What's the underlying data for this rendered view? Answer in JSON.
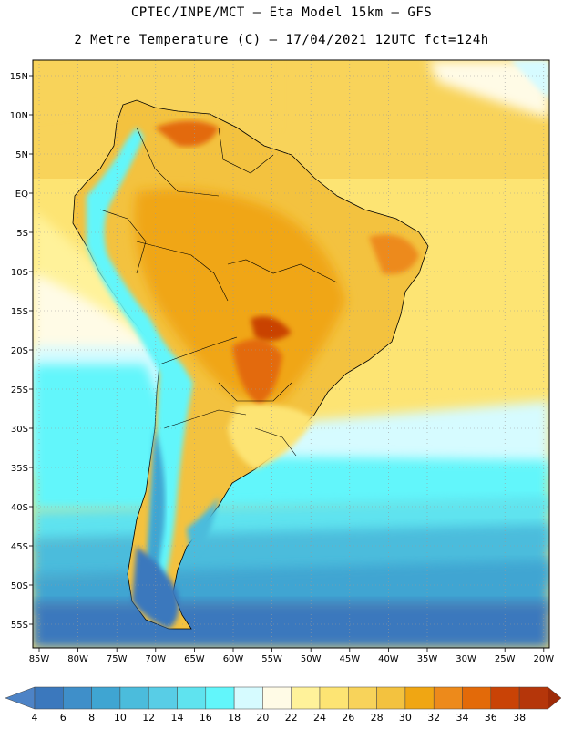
{
  "header": {
    "title_line1": "CPTEC/INPE/MCT –  Eta Model 15km – GFS",
    "title_line2": "2 Metre Temperature (C) – 17/04/2021 12UTC fct=124h"
  },
  "map": {
    "lon_labels": [
      "85W",
      "80W",
      "75W",
      "70W",
      "65W",
      "60W",
      "55W",
      "50W",
      "45W",
      "40W",
      "35W",
      "30W",
      "25W",
      "20W"
    ],
    "lat_labels": [
      "15N",
      "10N",
      "5N",
      "EQ",
      "5S",
      "10S",
      "15S",
      "20S",
      "25S",
      "30S",
      "35S",
      "40S",
      "45S",
      "50S",
      "55S"
    ]
  },
  "colorbar": {
    "labels": [
      "4",
      "6",
      "8",
      "10",
      "12",
      "14",
      "16",
      "18",
      "20",
      "22",
      "24",
      "26",
      "28",
      "30",
      "32",
      "34",
      "36",
      "38"
    ],
    "colors": [
      "#4d83c6",
      "#3b78bd",
      "#3f8fc9",
      "#3fa5d2",
      "#4bbcdc",
      "#58cde6",
      "#5fe3ef",
      "#62f6fb",
      "#d6fbff",
      "#fffbe6",
      "#fff29a",
      "#fde473",
      "#f8d35a",
      "#f3c23f",
      "#f0a613",
      "#ed8a1b",
      "#e36a09",
      "#c94306",
      "#b5360a",
      "#9e2a07"
    ]
  }
}
